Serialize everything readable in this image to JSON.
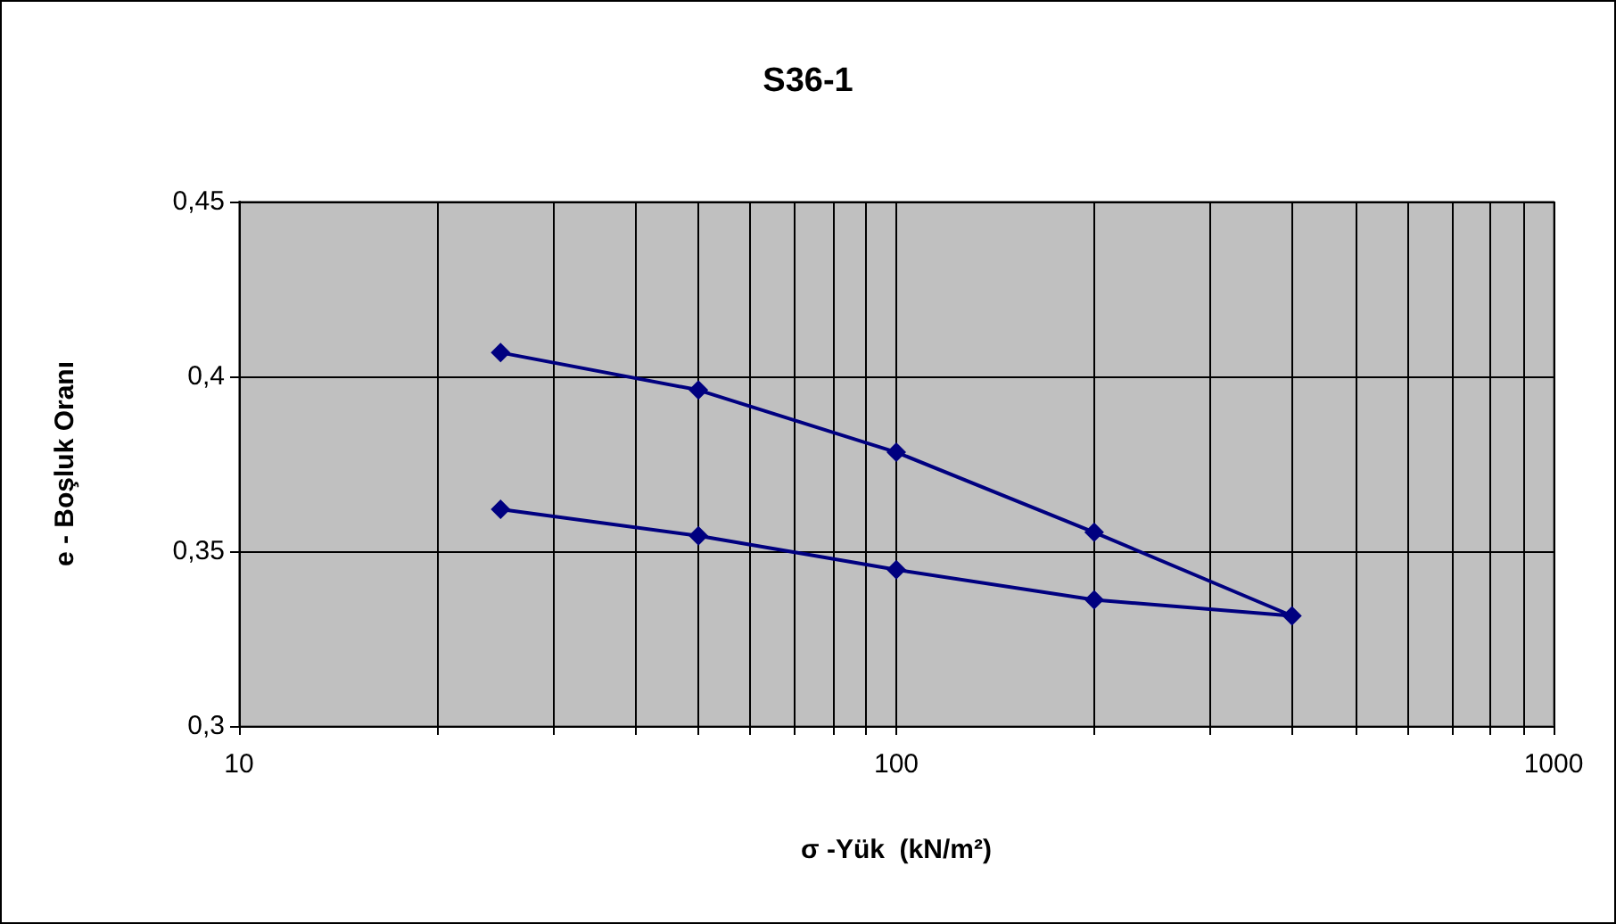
{
  "chart_data": {
    "type": "line",
    "title": "S36-1",
    "xlabel": "σ -Yük  (kN/m²)",
    "ylabel": "e - Boşluk Oranı",
    "x": [
      25,
      50,
      100,
      200,
      400,
      200,
      100,
      50,
      25
    ],
    "series": [
      {
        "color": "#000080",
        "values": [
          0.4068,
          0.3961,
          0.3783,
          0.3554,
          0.3315,
          0.3361,
          0.3447,
          0.3544,
          0.362
        ]
      }
    ],
    "log": "x",
    "xlim": [
      10,
      1000
    ],
    "xticks": [
      10,
      {
        "value": 20,
        "label": null
      },
      {
        "value": 30,
        "label": null
      },
      {
        "value": 40,
        "label": null
      },
      {
        "value": 50,
        "label": null
      },
      {
        "value": 60,
        "label": null
      },
      {
        "value": 70,
        "label": null
      },
      {
        "value": 80,
        "label": null
      },
      {
        "value": 90,
        "label": null
      },
      100,
      {
        "value": 200,
        "label": null
      },
      {
        "value": 300,
        "label": null
      },
      {
        "value": 400,
        "label": null
      },
      {
        "value": 500,
        "label": null
      },
      {
        "value": 600,
        "label": null
      },
      {
        "value": 700,
        "label": null
      },
      {
        "value": 800,
        "label": null
      },
      {
        "value": 900,
        "label": null
      },
      1000
    ],
    "ylim": [
      0.3,
      0.45
    ],
    "yticks": [
      {
        "value": 0.3,
        "label": "0,3"
      },
      {
        "value": 0.35,
        "label": "0,35"
      },
      {
        "value": 0.4,
        "label": "0,4"
      },
      {
        "value": 0.45,
        "label": "0,45"
      }
    ],
    "grid": true,
    "marker": "diamond",
    "line_style": "solid"
  }
}
